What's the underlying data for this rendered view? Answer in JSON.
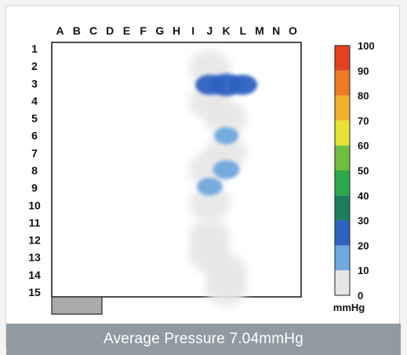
{
  "caption": "Average Pressure 7.04mmHg",
  "chart_data": {
    "type": "heatmap",
    "columns": [
      "A",
      "B",
      "C",
      "D",
      "E",
      "F",
      "G",
      "H",
      "I",
      "J",
      "K",
      "L",
      "M",
      "N",
      "O"
    ],
    "rows": [
      "1",
      "2",
      "3",
      "4",
      "5",
      "6",
      "7",
      "8",
      "9",
      "10",
      "11",
      "12",
      "13",
      "14",
      "15"
    ],
    "colorbar": {
      "unit": "mmHg",
      "range": [
        0,
        100
      ],
      "ticks": [
        "0",
        "10",
        "20",
        "30",
        "40",
        "50",
        "60",
        "70",
        "80",
        "90",
        "100"
      ],
      "colors": [
        "#e6e6e6",
        "#6fa8de",
        "#2f62c2",
        "#1a7f5e",
        "#2aa84a",
        "#6fbf3e",
        "#e8e232",
        "#f2b12a",
        "#ee7a22",
        "#e4421f"
      ]
    },
    "pressure_regions": [
      {
        "col": "K",
        "row": "3",
        "value": 28
      },
      {
        "col": "J",
        "row": "3",
        "value": 22
      },
      {
        "col": "L",
        "row": "3",
        "value": 22
      },
      {
        "col": "K",
        "row": "6",
        "value": 14
      },
      {
        "col": "K",
        "row": "8",
        "value": 18
      },
      {
        "col": "J",
        "row": "9",
        "value": 16
      },
      {
        "col": "J",
        "row": "2",
        "value": 4
      },
      {
        "col": "J",
        "row": "4",
        "value": 4
      },
      {
        "col": "K",
        "row": "5",
        "value": 3
      },
      {
        "col": "K",
        "row": "7",
        "value": 4
      },
      {
        "col": "J",
        "row": "8",
        "value": 3
      },
      {
        "col": "J",
        "row": "10",
        "value": 3
      },
      {
        "col": "J",
        "row": "12",
        "value": 4
      },
      {
        "col": "J",
        "row": "13",
        "value": 4
      },
      {
        "col": "K",
        "row": "14",
        "value": 3
      },
      {
        "col": "K",
        "row": "15",
        "value": 3
      }
    ]
  }
}
